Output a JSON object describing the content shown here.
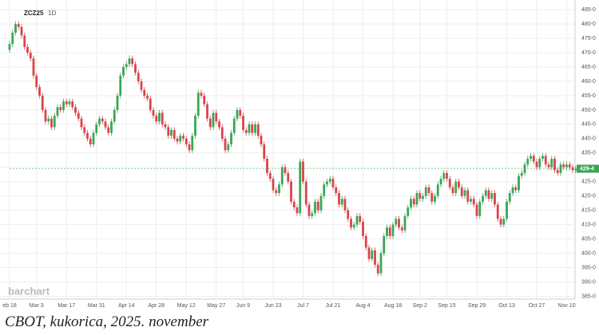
{
  "chart_data": {
    "type": "candlestick",
    "symbol": "ZCZ25",
    "interval": "1D",
    "watermark": "barchart",
    "caption": "CBOT, kukorica, 2025. november",
    "up_color": "#3aa655",
    "down_color": "#d9444a",
    "grid": true,
    "last_price": {
      "value": 429.5,
      "label": "429-4"
    },
    "ylim": [
      384,
      487
    ],
    "yticks": [
      {
        "value": 385,
        "label": "385-0"
      },
      {
        "value": 390,
        "label": "390-0"
      },
      {
        "value": 395,
        "label": "395-0"
      },
      {
        "value": 400,
        "label": "400-0"
      },
      {
        "value": 405,
        "label": "405-0"
      },
      {
        "value": 410,
        "label": "410-0"
      },
      {
        "value": 415,
        "label": "415-0"
      },
      {
        "value": 420,
        "label": "420-0"
      },
      {
        "value": 425,
        "label": "425-0"
      },
      {
        "value": 430,
        "label": "430-0"
      },
      {
        "value": 435,
        "label": "435-0"
      },
      {
        "value": 440,
        "label": "440-0"
      },
      {
        "value": 445,
        "label": "445-0"
      },
      {
        "value": 450,
        "label": "450-0"
      },
      {
        "value": 455,
        "label": "455-0"
      },
      {
        "value": 460,
        "label": "460-0"
      },
      {
        "value": 465,
        "label": "465-0"
      },
      {
        "value": 470,
        "label": "470-0"
      },
      {
        "value": 475,
        "label": "475-0"
      },
      {
        "value": 480,
        "label": "480-0"
      },
      {
        "value": 485,
        "label": "485-0"
      }
    ],
    "categories": [
      "eb 18",
      null,
      null,
      null,
      null,
      null,
      null,
      null,
      null,
      "Mar 3",
      null,
      null,
      null,
      null,
      null,
      null,
      null,
      null,
      null,
      "Mar 17",
      null,
      null,
      null,
      null,
      null,
      null,
      null,
      null,
      null,
      "Mar 31",
      null,
      null,
      null,
      null,
      null,
      null,
      null,
      null,
      null,
      "Apr 14",
      null,
      null,
      null,
      null,
      null,
      null,
      null,
      null,
      null,
      "Apr 28",
      null,
      null,
      null,
      null,
      null,
      null,
      null,
      null,
      null,
      "May 12",
      null,
      null,
      null,
      null,
      null,
      null,
      null,
      null,
      null,
      "May 27",
      null,
      null,
      null,
      null,
      null,
      null,
      null,
      null,
      "Jun 9",
      null,
      null,
      null,
      null,
      null,
      null,
      null,
      null,
      null,
      "Jun 23",
      null,
      null,
      null,
      null,
      null,
      null,
      null,
      null,
      null,
      "Jul 7",
      null,
      null,
      null,
      null,
      null,
      null,
      null,
      null,
      null,
      "Jul 21",
      null,
      null,
      null,
      null,
      null,
      null,
      null,
      null,
      null,
      "Aug 4",
      null,
      null,
      null,
      null,
      null,
      null,
      null,
      null,
      null,
      "Aug 18",
      null,
      null,
      null,
      null,
      null,
      null,
      null,
      null,
      "Sep 2",
      null,
      null,
      null,
      null,
      null,
      null,
      null,
      null,
      "Sep 15",
      null,
      null,
      null,
      null,
      null,
      null,
      null,
      null,
      null,
      "Sep 29",
      null,
      null,
      null,
      null,
      null,
      null,
      null,
      null,
      null,
      "Oct 13",
      null,
      null,
      null,
      null,
      null,
      null,
      null,
      null,
      null,
      "Oct 27",
      null,
      null,
      null,
      null,
      null,
      null,
      null,
      null,
      null,
      "Nov 10",
      null,
      null,
      null
    ],
    "open": [
      471,
      473,
      477,
      480,
      479,
      476,
      472,
      470,
      468,
      462,
      458,
      455,
      450,
      446,
      447,
      444,
      448,
      451,
      450,
      453,
      452,
      453,
      451,
      449,
      447,
      444,
      442,
      440,
      438,
      442,
      445,
      447,
      446,
      444,
      442,
      446,
      450,
      455,
      462,
      465,
      466,
      468,
      466,
      463,
      460,
      457,
      455,
      454,
      450,
      448,
      446,
      449,
      445,
      444,
      441,
      443,
      440,
      439,
      441,
      440,
      438,
      436,
      441,
      448,
      456,
      455,
      452,
      447,
      444,
      449,
      446,
      444,
      440,
      436,
      438,
      442,
      447,
      450,
      448,
      443,
      442,
      445,
      442,
      445,
      441,
      438,
      433,
      428,
      426,
      422,
      421,
      424,
      430,
      428,
      425,
      418,
      416,
      414,
      432,
      425,
      417,
      413,
      414,
      418,
      415,
      420,
      424,
      425,
      426,
      423,
      421,
      417,
      419,
      415,
      412,
      409,
      410,
      413,
      411,
      406,
      402,
      398,
      401,
      396,
      393,
      400,
      406,
      409,
      406,
      410,
      412,
      409,
      408,
      413,
      416,
      419,
      417,
      421,
      419,
      420,
      423,
      421,
      418,
      420,
      424,
      426,
      428,
      426,
      423,
      421,
      425,
      423,
      420,
      422,
      418,
      419,
      417,
      413,
      418,
      420,
      422,
      419,
      421,
      417,
      412,
      410,
      412,
      418,
      421,
      423,
      422,
      427,
      428,
      431,
      433,
      434,
      432,
      430,
      433,
      434,
      431,
      430,
      433,
      429,
      428,
      431,
      430,
      431,
      430,
      429
    ],
    "high": [
      474,
      478,
      481,
      481,
      480,
      477,
      473,
      471,
      469,
      463,
      459,
      456,
      451,
      448,
      448,
      449,
      452,
      452,
      454,
      454,
      454,
      454,
      452,
      450,
      448,
      445,
      443,
      441,
      443,
      446,
      448,
      448,
      447,
      445,
      447,
      451,
      456,
      463,
      466,
      467,
      469,
      469,
      467,
      464,
      461,
      458,
      456,
      455,
      451,
      449,
      450,
      450,
      446,
      445,
      444,
      444,
      441,
      442,
      442,
      441,
      439,
      442,
      449,
      457,
      457,
      456,
      453,
      448,
      450,
      450,
      447,
      445,
      441,
      439,
      443,
      448,
      451,
      451,
      449,
      444,
      446,
      446,
      446,
      446,
      442,
      439,
      434,
      429,
      427,
      423,
      425,
      431,
      431,
      429,
      426,
      419,
      417,
      433,
      433,
      426,
      418,
      415,
      419,
      419,
      421,
      425,
      426,
      427,
      427,
      424,
      422,
      420,
      420,
      416,
      413,
      411,
      414,
      414,
      412,
      407,
      403,
      402,
      402,
      397,
      401,
      407,
      410,
      410,
      411,
      413,
      413,
      410,
      414,
      417,
      420,
      420,
      422,
      422,
      421,
      424,
      424,
      422,
      421,
      425,
      427,
      429,
      429,
      427,
      424,
      426,
      426,
      424,
      423,
      423,
      420,
      420,
      418,
      419,
      421,
      423,
      423,
      422,
      422,
      418,
      413,
      413,
      419,
      422,
      424,
      424,
      428,
      429,
      432,
      434,
      435,
      435,
      433,
      434,
      435,
      435,
      432,
      434,
      434,
      430,
      432,
      432,
      432,
      432,
      431,
      430.5
    ],
    "low": [
      470,
      472,
      476,
      478,
      475,
      471,
      469,
      467,
      461,
      457,
      454,
      449,
      445,
      445,
      443,
      443,
      447,
      449,
      449,
      451,
      451,
      450,
      448,
      446,
      443,
      441,
      439,
      437,
      437,
      441,
      444,
      445,
      443,
      441,
      441,
      445,
      449,
      454,
      461,
      464,
      465,
      465,
      462,
      459,
      456,
      454,
      453,
      449,
      447,
      445,
      445,
      444,
      443,
      440,
      440,
      439,
      438,
      438,
      439,
      437,
      435,
      435,
      440,
      447,
      454,
      451,
      446,
      443,
      443,
      445,
      443,
      439,
      435,
      435,
      437,
      441,
      446,
      447,
      442,
      441,
      441,
      441,
      441,
      440,
      437,
      432,
      427,
      425,
      421,
      420,
      420,
      423,
      427,
      424,
      417,
      415,
      413,
      413,
      424,
      416,
      412,
      412,
      413,
      414,
      414,
      419,
      423,
      424,
      422,
      420,
      416,
      416,
      414,
      411,
      408,
      408,
      409,
      410,
      405,
      401,
      397,
      397,
      395,
      392,
      392,
      399,
      405,
      405,
      405,
      409,
      408,
      407,
      407,
      412,
      415,
      416,
      416,
      418,
      418,
      419,
      420,
      417,
      417,
      419,
      423,
      425,
      425,
      422,
      420,
      420,
      422,
      419,
      419,
      417,
      417,
      416,
      412,
      412,
      417,
      419,
      418,
      418,
      416,
      411,
      409,
      409,
      411,
      417,
      420,
      421,
      421,
      426,
      427,
      430,
      432,
      431,
      429,
      429,
      432,
      430,
      429,
      429,
      428,
      427,
      427,
      429,
      429,
      429,
      428,
      428
    ],
    "close": [
      473,
      477,
      480,
      479,
      476,
      472,
      470,
      468,
      462,
      458,
      455,
      450,
      446,
      447,
      444,
      448,
      451,
      450,
      453,
      452,
      453,
      451,
      449,
      447,
      444,
      442,
      440,
      438,
      442,
      445,
      447,
      446,
      444,
      442,
      446,
      450,
      455,
      462,
      465,
      466,
      468,
      466,
      463,
      460,
      457,
      455,
      454,
      450,
      448,
      446,
      449,
      445,
      444,
      441,
      443,
      440,
      439,
      441,
      440,
      438,
      436,
      441,
      448,
      456,
      455,
      452,
      447,
      444,
      449,
      446,
      444,
      440,
      436,
      438,
      442,
      447,
      450,
      448,
      443,
      442,
      445,
      442,
      445,
      441,
      438,
      433,
      428,
      426,
      422,
      421,
      424,
      430,
      428,
      425,
      418,
      416,
      414,
      432,
      425,
      417,
      413,
      414,
      418,
      415,
      420,
      424,
      425,
      426,
      423,
      421,
      417,
      419,
      415,
      412,
      409,
      410,
      413,
      411,
      406,
      402,
      398,
      401,
      396,
      393,
      400,
      406,
      409,
      406,
      410,
      412,
      409,
      408,
      413,
      416,
      419,
      417,
      421,
      419,
      420,
      423,
      421,
      418,
      420,
      424,
      426,
      428,
      426,
      423,
      421,
      425,
      423,
      420,
      422,
      418,
      419,
      417,
      413,
      418,
      420,
      422,
      419,
      421,
      417,
      412,
      410,
      412,
      418,
      421,
      423,
      422,
      427,
      428,
      431,
      433,
      434,
      432,
      430,
      433,
      434,
      431,
      430,
      433,
      429,
      428,
      431,
      430,
      431,
      430,
      429,
      429.5
    ]
  }
}
